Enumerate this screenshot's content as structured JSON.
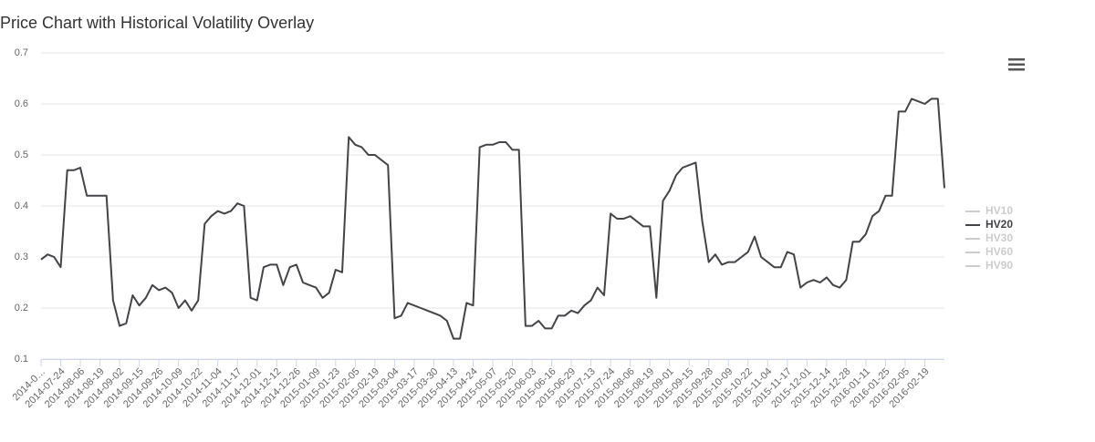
{
  "chart_data": {
    "type": "line",
    "title": "Price Chart with Historical Volatility Overlay",
    "categories": [
      "2014-0…",
      null,
      null,
      "2014-07-24",
      null,
      null,
      "2014-08-06",
      null,
      null,
      "2014-08-19",
      null,
      null,
      "2014-09-02",
      null,
      null,
      "2014-09-15",
      null,
      null,
      "2014-09-26",
      null,
      null,
      "2014-10-09",
      null,
      null,
      "2014-10-22",
      null,
      null,
      "2014-11-04",
      null,
      null,
      "2014-11-17",
      null,
      null,
      "2014-12-01",
      null,
      null,
      "2014-12-12",
      null,
      null,
      "2014-12-26",
      null,
      null,
      "2015-01-09",
      null,
      null,
      "2015-01-23",
      null,
      null,
      "2015-02-05",
      null,
      null,
      "2015-02-19",
      null,
      null,
      "2015-03-04",
      null,
      null,
      "2015-03-17",
      null,
      null,
      "2015-03-30",
      null,
      null,
      "2015-04-13",
      null,
      null,
      "2015-04-24",
      null,
      null,
      "2015-05-07",
      null,
      null,
      "2015-05-20",
      null,
      null,
      "2015-06-03",
      null,
      null,
      "2015-06-16",
      null,
      null,
      "2015-06-29",
      null,
      null,
      "2015-07-13",
      null,
      null,
      "2015-07-24",
      null,
      null,
      "2015-08-06",
      null,
      null,
      "2015-08-19",
      null,
      null,
      "2015-09-01",
      null,
      null,
      "2015-09-15",
      null,
      null,
      "2015-09-28",
      null,
      null,
      "2015-10-09",
      null,
      null,
      "2015-10-22",
      null,
      null,
      "2015-11-04",
      null,
      null,
      "2015-11-17",
      null,
      null,
      "2015-12-01",
      null,
      null,
      "2015-12-14",
      null,
      null,
      "2015-12-28",
      null,
      null,
      "2016-01-11",
      null,
      null,
      "2016-01-25",
      null,
      null,
      "2016-02-05",
      null,
      null,
      "2016-02-19",
      null,
      null,
      null
    ],
    "series": [
      {
        "name": "HV10",
        "visible": false
      },
      {
        "name": "HV20",
        "color": "#434348",
        "visible": true,
        "values": [
          0.295,
          0.305,
          0.3,
          0.28,
          0.47,
          0.47,
          0.475,
          0.42,
          0.42,
          0.42,
          0.42,
          0.215,
          0.165,
          0.17,
          0.225,
          0.205,
          0.22,
          0.245,
          0.235,
          0.24,
          0.23,
          0.2,
          0.215,
          0.195,
          0.215,
          0.365,
          0.38,
          0.39,
          0.385,
          0.39,
          0.405,
          0.4,
          0.22,
          0.215,
          0.28,
          0.285,
          0.285,
          0.245,
          0.28,
          0.285,
          0.25,
          0.245,
          0.24,
          0.22,
          0.23,
          0.275,
          0.27,
          0.535,
          0.52,
          0.515,
          0.5,
          0.5,
          0.49,
          0.48,
          0.18,
          0.185,
          0.21,
          0.205,
          0.2,
          0.195,
          0.19,
          0.185,
          0.175,
          0.14,
          0.14,
          0.21,
          0.205,
          0.515,
          0.52,
          0.52,
          0.525,
          0.525,
          0.51,
          0.51,
          0.165,
          0.165,
          0.175,
          0.16,
          0.16,
          0.185,
          0.185,
          0.195,
          0.19,
          0.205,
          0.215,
          0.24,
          0.225,
          0.385,
          0.375,
          0.375,
          0.38,
          0.37,
          0.36,
          0.36,
          0.22,
          0.41,
          0.43,
          0.46,
          0.475,
          0.48,
          0.485,
          0.37,
          0.29,
          0.305,
          0.285,
          0.29,
          0.29,
          0.3,
          0.31,
          0.34,
          0.3,
          0.29,
          0.28,
          0.28,
          0.31,
          0.305,
          0.24,
          0.25,
          0.255,
          0.25,
          0.26,
          0.245,
          0.24,
          0.255,
          0.33,
          0.33,
          0.345,
          0.38,
          0.39,
          0.42,
          0.42,
          0.585,
          0.585,
          0.61,
          0.605,
          0.6,
          0.61,
          0.61,
          0.435
        ]
      },
      {
        "name": "HV30",
        "visible": false
      },
      {
        "name": "HV60",
        "visible": false
      },
      {
        "name": "HV90",
        "visible": false
      }
    ],
    "ylim": [
      0.1,
      0.7
    ],
    "yticks": [
      0.1,
      0.2,
      0.3,
      0.4,
      0.5,
      0.6,
      0.7
    ],
    "grid": true,
    "legend": "right"
  }
}
